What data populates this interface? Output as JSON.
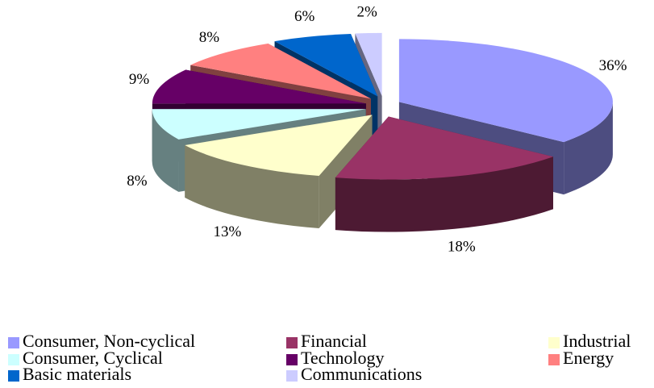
{
  "chart_data": {
    "type": "pie3d",
    "categories": [
      "Consumer, Non-cyclical",
      "Financial",
      "Industrial",
      "Consumer, Cyclical",
      "Technology",
      "Energy",
      "Basic materials",
      "Communications"
    ],
    "values": [
      36,
      18,
      13,
      8,
      9,
      8,
      6,
      2
    ],
    "value_labels": [
      "36%",
      "18%",
      "13%",
      "8%",
      "9%",
      "8%",
      "6%",
      "2%"
    ],
    "colors": [
      "#9999ff",
      "#993366",
      "#ffffcc",
      "#ccffff",
      "#660066",
      "#ff8080",
      "#0066cc",
      "#ccccff"
    ],
    "legend": "bottom"
  }
}
